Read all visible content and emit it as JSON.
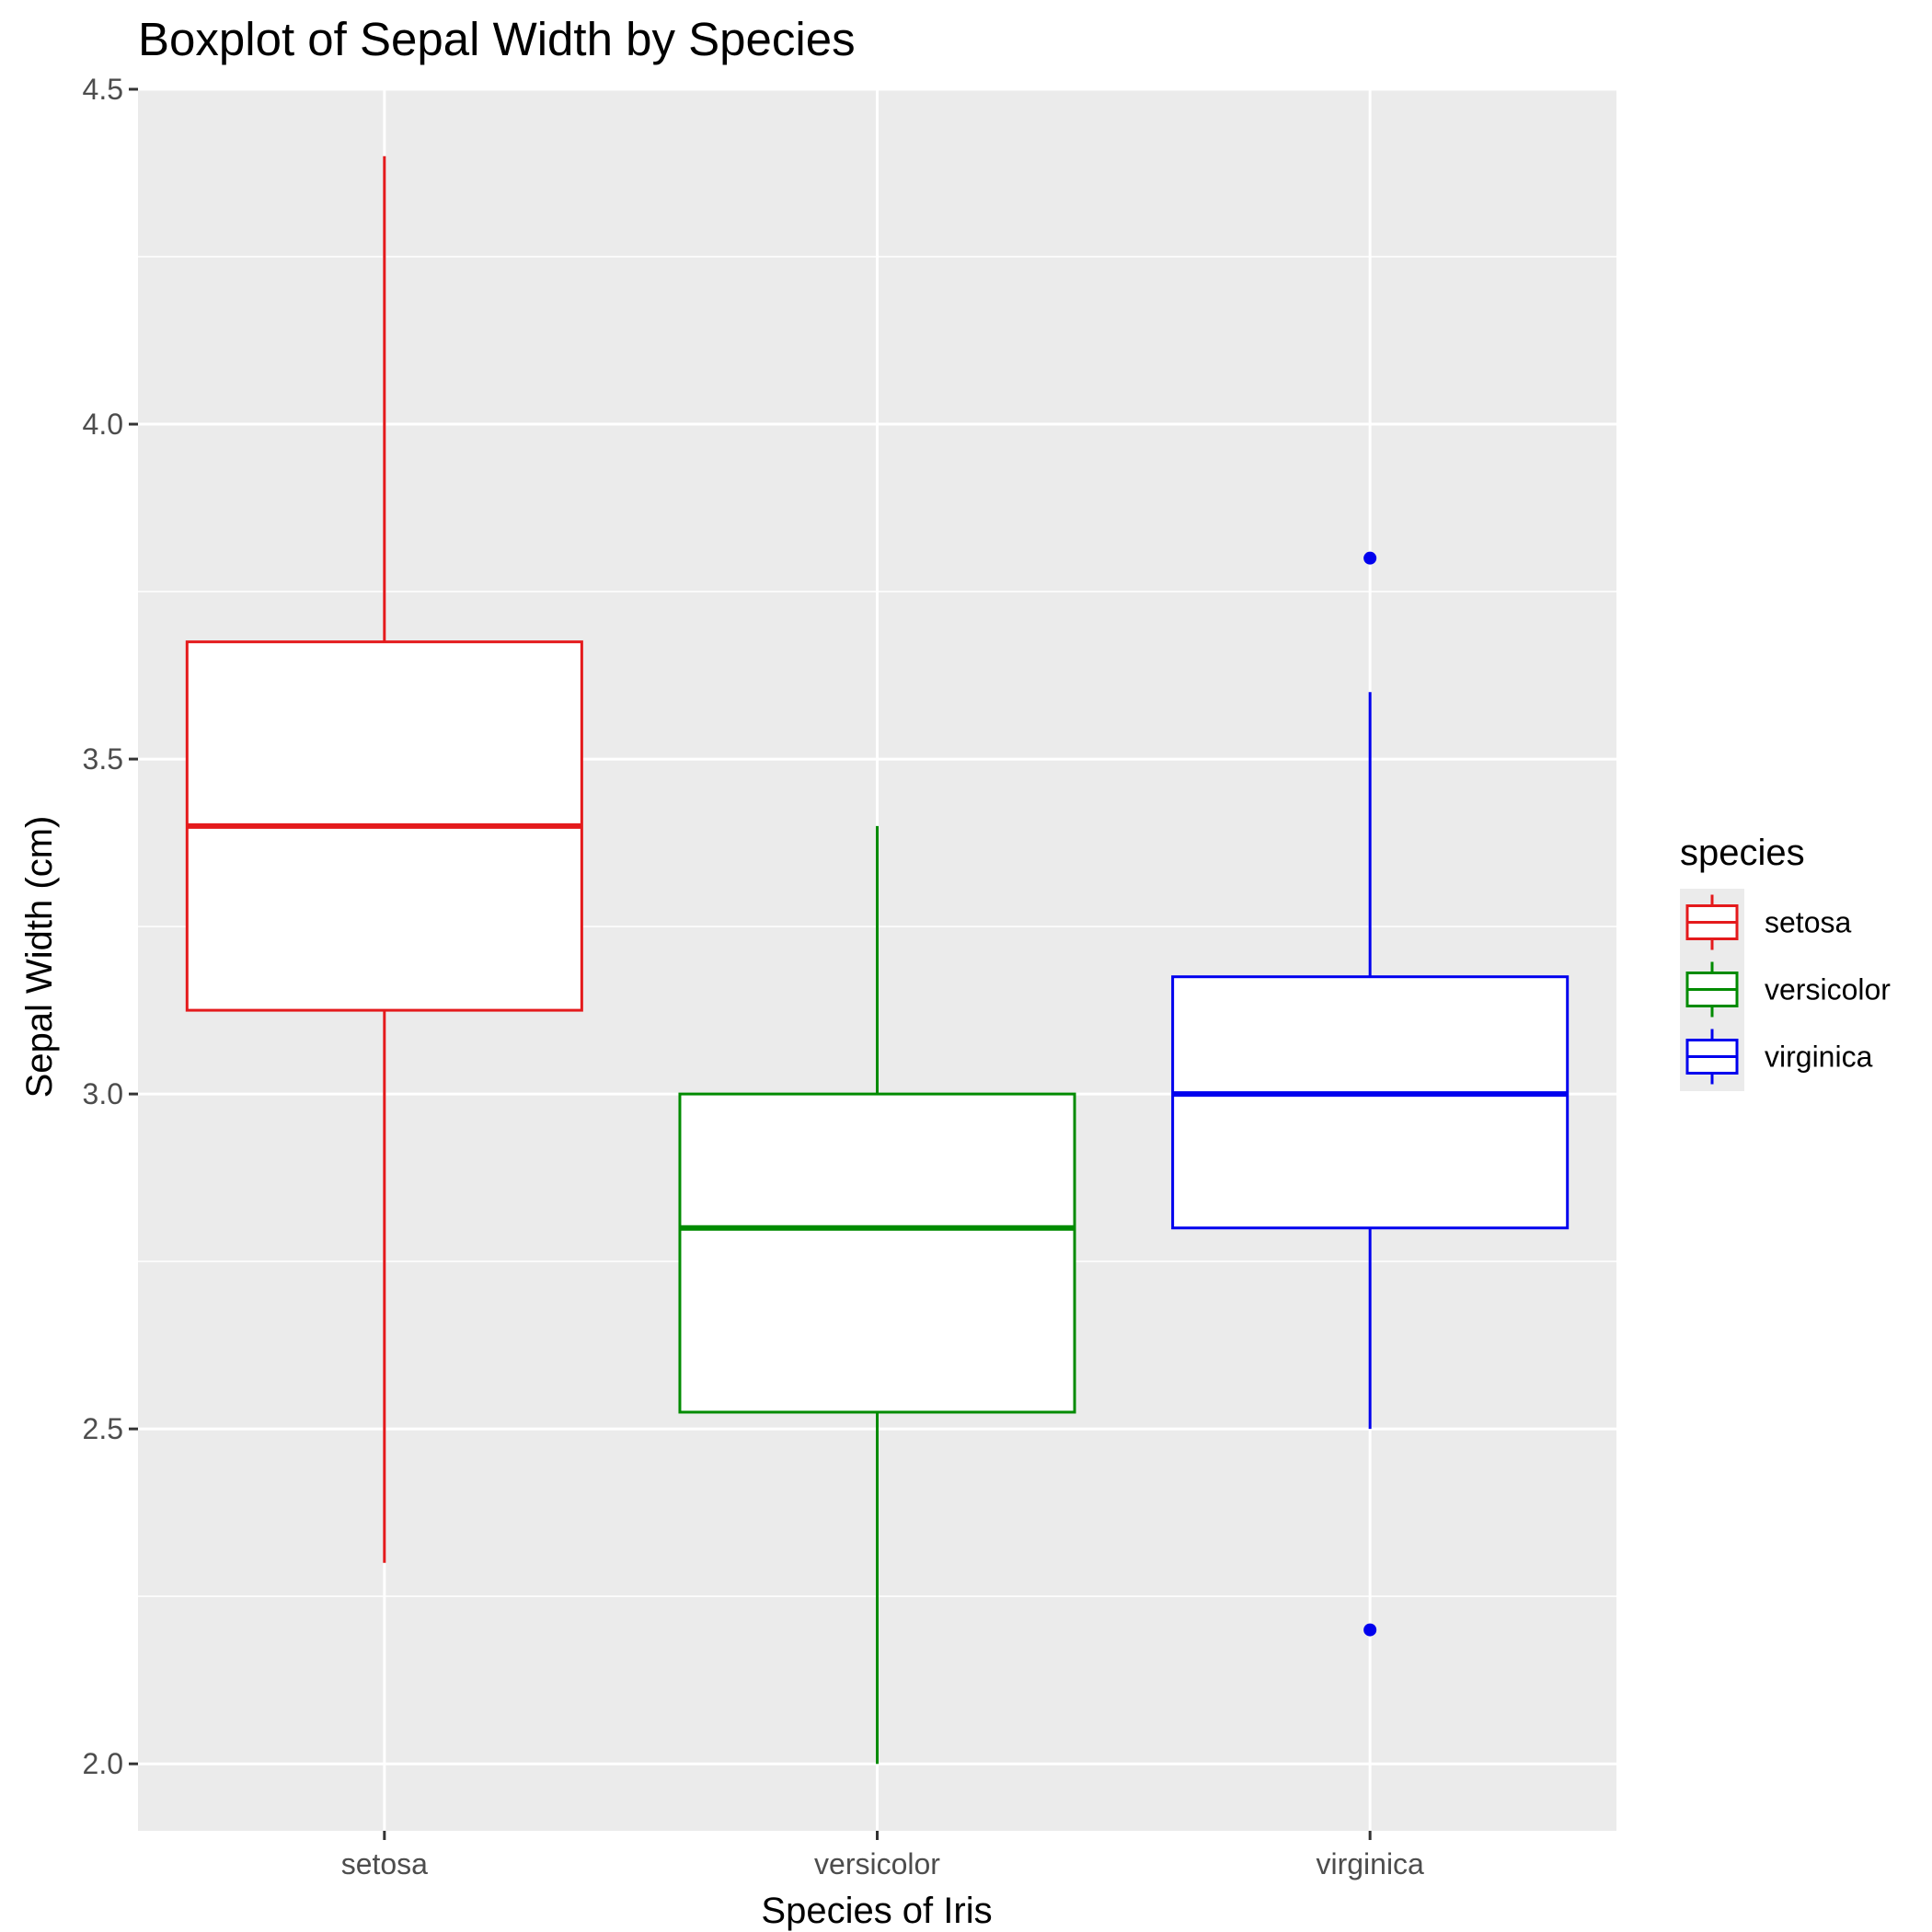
{
  "chart_data": {
    "type": "boxplot",
    "title": "Boxplot of Sepal Width by Species",
    "xlabel": "Species of Iris",
    "ylabel": "Sepal Width (cm)",
    "ylim": [
      1.9,
      4.5
    ],
    "yticks": [
      2.0,
      2.5,
      3.0,
      3.5,
      4.0,
      4.5
    ],
    "ytick_labels": [
      "2.0",
      "2.5",
      "3.0",
      "3.5",
      "4.0",
      "4.5"
    ],
    "grid": true,
    "legend": {
      "title": "species",
      "placement": "right"
    },
    "categories": [
      "setosa",
      "versicolor",
      "virginica"
    ],
    "series": [
      {
        "name": "setosa",
        "color": "#e41a1c",
        "min": 2.3,
        "q1": 3.125,
        "median": 3.4,
        "q3": 3.675,
        "max": 4.4,
        "outliers": []
      },
      {
        "name": "versicolor",
        "color": "#008b00",
        "min": 2.0,
        "q1": 2.525,
        "median": 2.8,
        "q3": 3.0,
        "max": 3.4,
        "outliers": []
      },
      {
        "name": "virginica",
        "color": "#0000ee",
        "min": 2.5,
        "q1": 2.8,
        "median": 3.0,
        "q3": 3.175,
        "max": 3.6,
        "outliers": [
          3.8,
          2.2
        ]
      }
    ]
  }
}
